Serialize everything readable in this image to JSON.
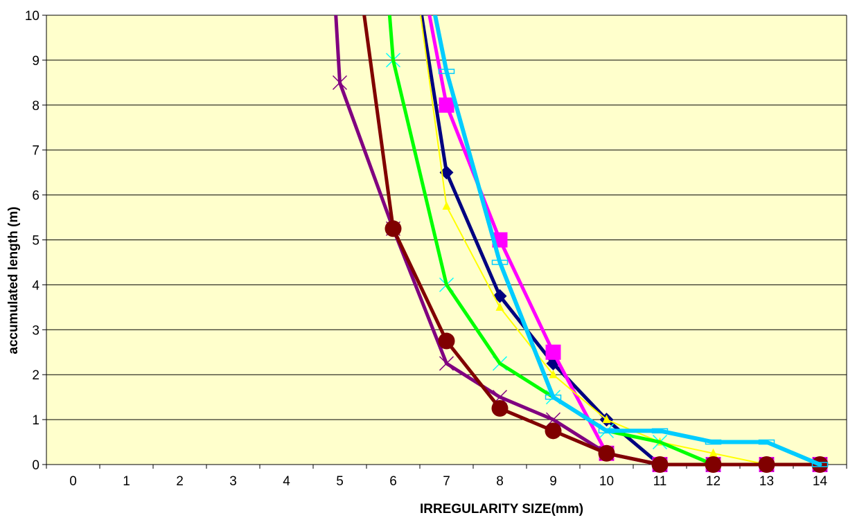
{
  "chart_data": {
    "type": "line",
    "title": "",
    "xlabel": "IRREGULARITY SIZE(mm)",
    "ylabel": "accumulated length (m)",
    "xlim": [
      0,
      14
    ],
    "ylim": [
      0,
      10
    ],
    "x_ticks": [
      "0",
      "1",
      "2",
      "3",
      "4",
      "5",
      "6",
      "7",
      "8",
      "9",
      "10",
      "11",
      "12",
      "13",
      "14"
    ],
    "y_ticks": [
      "0",
      "1",
      "2",
      "3",
      "4",
      "5",
      "6",
      "7",
      "8",
      "9",
      "10"
    ],
    "grid": "horizontal",
    "plot_background": "#FFFFCC",
    "series": [
      {
        "color": "#000080",
        "marker": "diamond",
        "width": 5,
        "points": [
          [
            6.4,
            11
          ],
          [
            7,
            6.5
          ],
          [
            8,
            3.75
          ],
          [
            9,
            2.25
          ],
          [
            10,
            1
          ],
          [
            11,
            0
          ],
          [
            12,
            0
          ],
          [
            13,
            0
          ],
          [
            14,
            0
          ]
        ]
      },
      {
        "color": "#FF00FF",
        "marker": "square",
        "width": 5,
        "points": [
          [
            6.6,
            10.5
          ],
          [
            7,
            8
          ],
          [
            8,
            5
          ],
          [
            9,
            2.5
          ],
          [
            10,
            0.25
          ],
          [
            11,
            0
          ],
          [
            12,
            0
          ],
          [
            13,
            0
          ],
          [
            14,
            0
          ]
        ]
      },
      {
        "color": "#FFFF00",
        "marker": "triangle",
        "width": 2,
        "points": [
          [
            6.4,
            11
          ],
          [
            7,
            5.75
          ],
          [
            8,
            3.5
          ],
          [
            9,
            2
          ],
          [
            10,
            1
          ],
          [
            11,
            0.5
          ],
          [
            12,
            0.25
          ],
          [
            13,
            0
          ],
          [
            14,
            0
          ]
        ]
      },
      {
        "color": "#00FFFF",
        "marker": "x",
        "width": 0,
        "points": [
          [
            6,
            9
          ],
          [
            7,
            4
          ],
          [
            8,
            2.25
          ],
          [
            9,
            1.5
          ],
          [
            10,
            0.75
          ],
          [
            11,
            0.5
          ],
          [
            12,
            0
          ]
        ]
      },
      {
        "color": "#00FF00",
        "marker": "none",
        "width": 5,
        "points": [
          [
            5.9,
            10.5
          ],
          [
            6,
            9
          ],
          [
            7,
            4
          ],
          [
            8,
            2.25
          ],
          [
            9,
            1.5
          ],
          [
            10,
            0.75
          ],
          [
            11,
            0.5
          ],
          [
            12,
            0
          ]
        ]
      },
      {
        "color": "#800080",
        "marker": "x",
        "width": 5,
        "points": [
          [
            4.9,
            10.5
          ],
          [
            5,
            8.5
          ],
          [
            6,
            5.25
          ],
          [
            7,
            2.25
          ],
          [
            8,
            1.5
          ],
          [
            9,
            1
          ],
          [
            10,
            0.25
          ],
          [
            11,
            0
          ],
          [
            12,
            0
          ],
          [
            13,
            0
          ],
          [
            14,
            0
          ]
        ]
      },
      {
        "color": "#800000",
        "marker": "circle",
        "width": 5,
        "points": [
          [
            5.4,
            10.5
          ],
          [
            6,
            5.25
          ],
          [
            7,
            2.75
          ],
          [
            8,
            1.25
          ],
          [
            9,
            0.75
          ],
          [
            10,
            0.25
          ],
          [
            11,
            0
          ],
          [
            12,
            0
          ],
          [
            13,
            0
          ],
          [
            14,
            0
          ]
        ]
      },
      {
        "color": "#00CCFF",
        "marker": "dash",
        "width": 6,
        "points": [
          [
            6.7,
            10.5
          ],
          [
            7,
            8.75
          ],
          [
            8,
            4.5
          ],
          [
            9,
            1.5
          ],
          [
            10,
            0.75
          ],
          [
            11,
            0.75
          ],
          [
            12,
            0.5
          ],
          [
            13,
            0.5
          ],
          [
            14,
            0
          ]
        ]
      }
    ]
  }
}
